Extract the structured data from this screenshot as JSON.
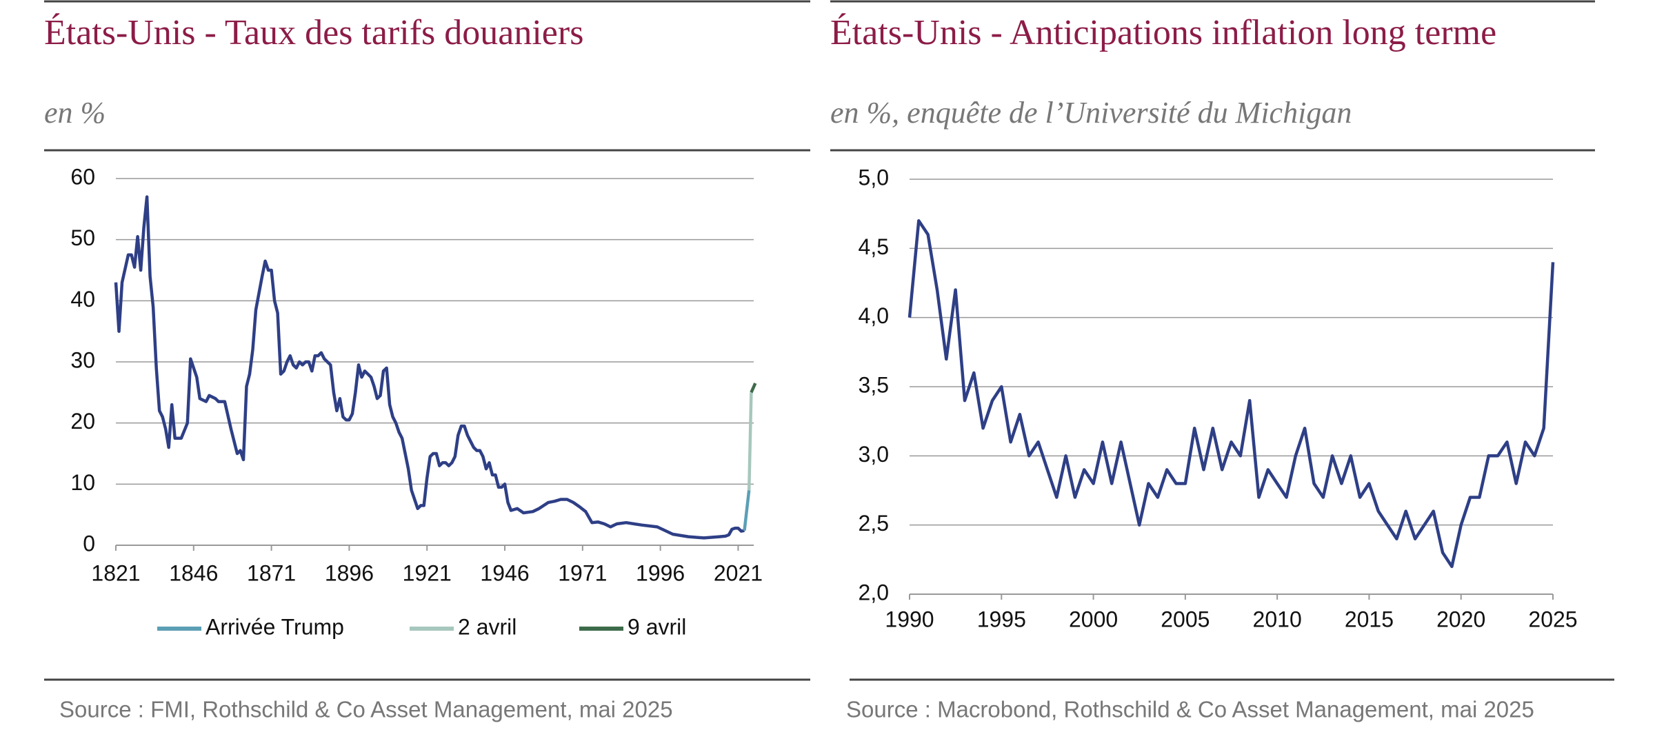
{
  "chart_data": [
    {
      "type": "line",
      "title": "États-Unis  - Taux des tarifs douaniers",
      "subtitle": "en %",
      "source": "Source : FMI, Rothschild & Co Asset Management, mai 2025",
      "xlim": [
        1821,
        2026
      ],
      "xticks": [
        1821,
        1846,
        1871,
        1896,
        1921,
        1946,
        1971,
        1996,
        2021
      ],
      "ylim": [
        0,
        60
      ],
      "yticks": [
        0,
        10,
        20,
        30,
        40,
        50,
        60
      ],
      "grid": true,
      "series": [
        {
          "color": "#2e3f86",
          "x": [
            1821,
            1822,
            1823,
            1825,
            1826,
            1827,
            1828,
            1829,
            1830,
            1831,
            1832,
            1833,
            1834,
            1835,
            1836,
            1837,
            1838,
            1839,
            1840,
            1842,
            1844,
            1845,
            1846,
            1847,
            1848,
            1850,
            1851,
            1853,
            1854,
            1856,
            1858,
            1860,
            1861,
            1862,
            1863,
            1864,
            1865,
            1866,
            1868,
            1869,
            1870,
            1871,
            1872,
            1873,
            1874,
            1875,
            1876,
            1877,
            1878,
            1879,
            1880,
            1881,
            1882,
            1883,
            1884,
            1885,
            1886,
            1887,
            1888,
            1890,
            1891,
            1892,
            1893,
            1894,
            1895,
            1896,
            1897,
            1898,
            1899,
            1900,
            1901,
            1902,
            1903,
            1904,
            1905,
            1906,
            1907,
            1908,
            1909,
            1910,
            1911,
            1912,
            1913,
            1914,
            1915,
            1916,
            1917,
            1918,
            1919,
            1920,
            1921,
            1922,
            1923,
            1924,
            1925,
            1926,
            1927,
            1928,
            1929,
            1930,
            1931,
            1932,
            1933,
            1934,
            1935,
            1936,
            1937,
            1938,
            1939,
            1940,
            1941,
            1942,
            1943,
            1944,
            1945,
            1946,
            1947,
            1948,
            1950,
            1952,
            1955,
            1957,
            1960,
            1962,
            1964,
            1966,
            1968,
            1970,
            1972,
            1974,
            1976,
            1978,
            1980,
            1982,
            1985,
            1990,
            1995,
            2000,
            2005,
            2010,
            2015,
            2017,
            2018,
            2019,
            2020,
            2021,
            2022,
            2023
          ],
          "values": [
            43,
            35,
            43,
            47.5,
            47.5,
            45.5,
            50.5,
            45,
            52,
            57,
            44,
            39,
            29,
            22,
            21,
            19,
            16,
            23,
            17.5,
            17.5,
            20,
            30.5,
            29,
            27.5,
            24,
            23.5,
            24.5,
            24,
            23.5,
            23.5,
            19,
            15,
            15.5,
            14,
            26,
            28,
            32,
            38.5,
            44,
            46.5,
            45,
            45,
            40,
            38,
            28,
            28.5,
            30,
            31,
            29.5,
            29,
            30,
            29.5,
            30,
            30,
            28.5,
            31,
            31,
            31.5,
            30.5,
            29.5,
            25,
            22,
            24,
            21,
            20.5,
            20.5,
            21.5,
            25,
            29.5,
            27.5,
            28.5,
            28,
            27.5,
            26,
            24,
            24.5,
            28.5,
            29,
            23,
            21,
            20,
            18.5,
            17.5,
            15,
            12.5,
            9,
            7.5,
            6,
            6.5,
            6.5,
            11,
            14.5,
            15,
            15,
            13,
            13.5,
            13.5,
            13,
            13.5,
            14.5,
            18,
            19.5,
            19.5,
            18,
            17,
            16,
            15.5,
            15.5,
            14.5,
            12.5,
            13.5,
            11.5,
            11.5,
            9.5,
            9.5,
            10,
            7,
            5.7,
            6,
            5.3,
            5.5,
            6,
            7,
            7.2,
            7.5,
            7.5,
            7,
            6.3,
            5.5,
            3.7,
            3.8,
            3.5,
            3.0,
            3.5,
            3.7,
            3.3,
            3.0,
            1.8,
            1.4,
            1.2,
            1.4,
            1.5,
            1.7,
            2.6,
            2.8,
            2.8,
            2.3,
            2.4
          ]
        },
        {
          "name": "Arrivée Trump",
          "color": "#5b9fb5",
          "x": [
            2023,
            2024.5
          ],
          "values": [
            2.4,
            9
          ]
        },
        {
          "name": "2 avril",
          "color": "#a7c7bd",
          "x": [
            2024.5,
            2025.2
          ],
          "values": [
            9,
            25
          ]
        },
        {
          "name": "9 avril",
          "color": "#3d6b4a",
          "x": [
            2025.2,
            2026.5
          ],
          "values": [
            25,
            26.5
          ]
        }
      ]
    },
    {
      "type": "line",
      "title": "États-Unis  - Anticipations inflation long terme",
      "subtitle": "en %, enquête de l’Université du Michigan",
      "source": "Source : Macrobond, Rothschild & Co Asset Management, mai 2025",
      "xlim": [
        1990,
        2025
      ],
      "xticks": [
        1990,
        1995,
        2000,
        2005,
        2010,
        2015,
        2020,
        2025
      ],
      "ylim": [
        2,
        5
      ],
      "yticks": [
        {
          "value": 2,
          "label": "2,0"
        },
        {
          "value": 2.5,
          "label": "2,5"
        },
        {
          "value": 3,
          "label": "3,0"
        },
        {
          "value": 3.5,
          "label": "3,5"
        },
        {
          "value": 4,
          "label": "4,0"
        },
        {
          "value": 4.5,
          "label": "4,5"
        },
        {
          "value": 5,
          "label": "5,0"
        }
      ],
      "grid": true,
      "series": [
        {
          "color": "#2e3f86",
          "x": [
            1990,
            1990.5,
            1991,
            1991.5,
            1992,
            1992.5,
            1993,
            1993.5,
            1994,
            1994.5,
            1995,
            1995.5,
            1996,
            1996.5,
            1997,
            1997.5,
            1998,
            1998.5,
            1999,
            1999.5,
            2000,
            2000.5,
            2001,
            2001.5,
            2002,
            2002.5,
            2003,
            2003.5,
            2004,
            2004.5,
            2005,
            2005.5,
            2006,
            2006.5,
            2007,
            2007.5,
            2008,
            2008.5,
            2009,
            2009.5,
            2010,
            2010.5,
            2011,
            2011.5,
            2012,
            2012.5,
            2013,
            2013.5,
            2014,
            2014.5,
            2015,
            2015.5,
            2016,
            2016.5,
            2017,
            2017.5,
            2018,
            2018.5,
            2019,
            2019.5,
            2020,
            2020.5,
            2021,
            2021.5,
            2022,
            2022.5,
            2023,
            2023.5,
            2024,
            2024.5,
            2025
          ],
          "values": [
            4.0,
            4.7,
            4.6,
            4.2,
            3.7,
            4.2,
            3.4,
            3.6,
            3.2,
            3.4,
            3.5,
            3.1,
            3.3,
            3.0,
            3.1,
            2.9,
            2.7,
            3.0,
            2.7,
            2.9,
            2.8,
            3.1,
            2.8,
            3.1,
            2.8,
            2.5,
            2.8,
            2.7,
            2.9,
            2.8,
            2.8,
            3.2,
            2.9,
            3.2,
            2.9,
            3.1,
            3.0,
            3.4,
            2.7,
            2.9,
            2.8,
            2.7,
            3.0,
            3.2,
            2.8,
            2.7,
            3.0,
            2.8,
            3.0,
            2.7,
            2.8,
            2.6,
            2.5,
            2.4,
            2.6,
            2.4,
            2.5,
            2.6,
            2.3,
            2.2,
            2.5,
            2.7,
            2.7,
            3.0,
            3.0,
            3.1,
            2.8,
            3.1,
            3.0,
            3.2,
            4.4
          ]
        }
      ]
    }
  ]
}
